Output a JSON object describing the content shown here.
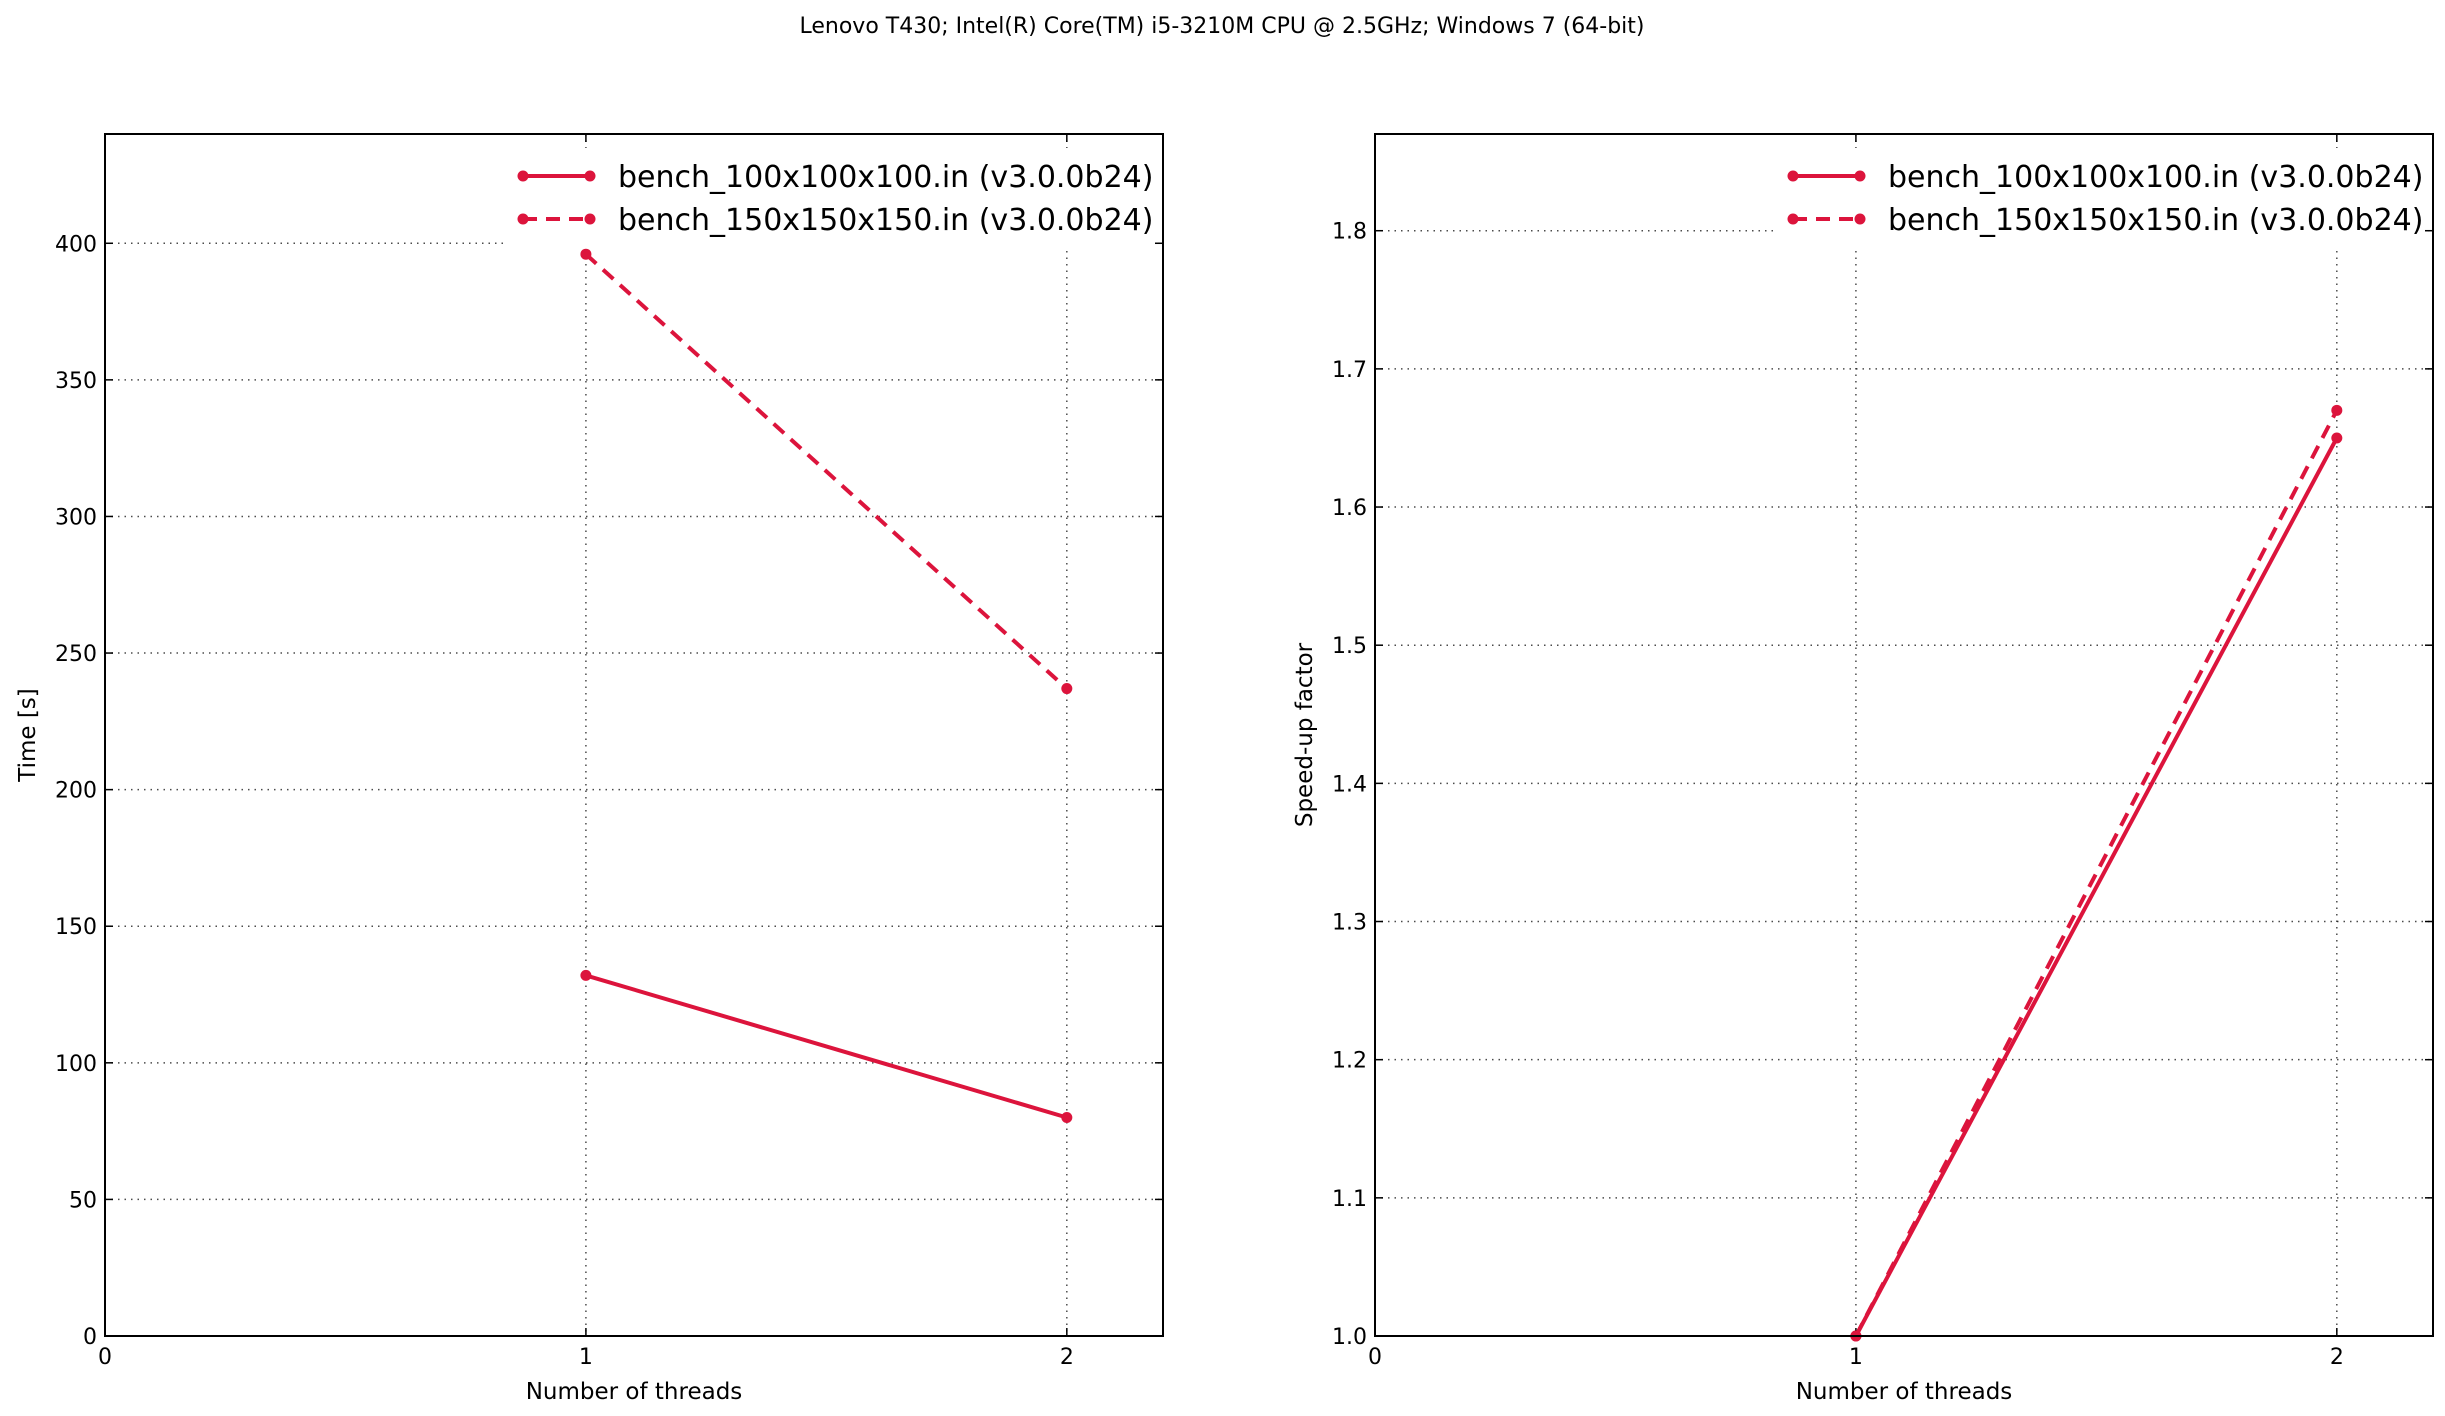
{
  "figure": {
    "title": "Lenovo T430; Intel(R) Core(TM) i5-3210M CPU @ 2.5GHz; Windows 7 (64-bit)"
  },
  "colors": {
    "series": "#dc143c",
    "axes": "#000000",
    "background": "#ffffff"
  },
  "chart_data": [
    {
      "type": "line",
      "xlabel": "Number of threads",
      "ylabel": "Time [s]",
      "xlim": [
        0,
        2.2
      ],
      "ylim": [
        0,
        440
      ],
      "xticks": [
        0,
        1,
        2
      ],
      "yticks": [
        0,
        50,
        100,
        150,
        200,
        250,
        300,
        350,
        400
      ],
      "grid": true,
      "legend": "top-right",
      "series": [
        {
          "name": "bench_100x100x100.in (v3.0.0b24)",
          "style": "solid",
          "x": [
            1,
            2
          ],
          "y": [
            132,
            80
          ]
        },
        {
          "name": "bench_150x150x150.in (v3.0.0b24)",
          "style": "dashed",
          "x": [
            1,
            2
          ],
          "y": [
            396,
            237
          ]
        }
      ]
    },
    {
      "type": "line",
      "xlabel": "Number of threads",
      "ylabel": "Speed-up factor",
      "xlim": [
        0,
        2.2
      ],
      "ylim": [
        1.0,
        1.87
      ],
      "xticks": [
        0,
        1,
        2
      ],
      "yticks": [
        1.0,
        1.1,
        1.2,
        1.3,
        1.4,
        1.5,
        1.6,
        1.7,
        1.8
      ],
      "grid": true,
      "legend": "top-right",
      "series": [
        {
          "name": "bench_100x100x100.in (v3.0.0b24)",
          "style": "solid",
          "x": [
            1,
            2
          ],
          "y": [
            1.0,
            1.65
          ]
        },
        {
          "name": "bench_150x150x150.in (v3.0.0b24)",
          "style": "dashed",
          "x": [
            1,
            2
          ],
          "y": [
            1.0,
            1.67
          ]
        }
      ]
    }
  ]
}
